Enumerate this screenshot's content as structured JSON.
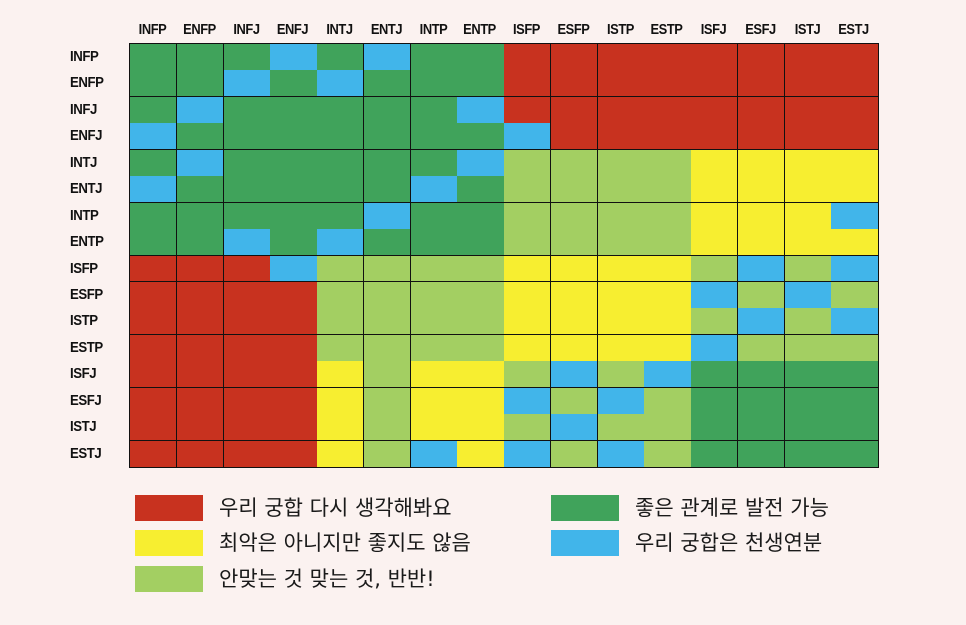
{
  "colors": {
    "red": "#c8321f",
    "yellow": "#f7ee30",
    "lightgreen": "#a3cf62",
    "green": "#40a35b",
    "blue": "#41b5ea"
  },
  "chart_data": {
    "type": "heatmap",
    "columns": [
      "INFP",
      "ENFP",
      "INFJ",
      "ENFJ",
      "INTJ",
      "ENTJ",
      "INTP",
      "ENTP",
      "ISFP",
      "ESFP",
      "ISTP",
      "ESTP",
      "ISFJ",
      "ESFJ",
      "ISTJ",
      "ESTJ"
    ],
    "rows": [
      "INFP",
      "ENFP",
      "INFJ",
      "ENFJ",
      "INTJ",
      "ENTJ",
      "INTP",
      "ENTP",
      "ISFP",
      "ESFP",
      "ISTP",
      "ESTP",
      "ISFJ",
      "ESFJ",
      "ISTJ",
      "ESTJ"
    ],
    "value_key": {
      "R": "red",
      "Y": "yellow",
      "L": "lightgreen",
      "G": "green",
      "B": "blue"
    },
    "matrix": [
      [
        "G",
        "G",
        "G",
        "B",
        "G",
        "B",
        "G",
        "G",
        "R",
        "R",
        "R",
        "R",
        "R",
        "R",
        "R",
        "R"
      ],
      [
        "G",
        "G",
        "B",
        "G",
        "B",
        "G",
        "G",
        "G",
        "R",
        "R",
        "R",
        "R",
        "R",
        "R",
        "R",
        "R"
      ],
      [
        "G",
        "B",
        "G",
        "G",
        "G",
        "G",
        "G",
        "B",
        "R",
        "R",
        "R",
        "R",
        "R",
        "R",
        "R",
        "R"
      ],
      [
        "B",
        "G",
        "G",
        "G",
        "G",
        "G",
        "G",
        "G",
        "B",
        "R",
        "R",
        "R",
        "R",
        "R",
        "R",
        "R"
      ],
      [
        "G",
        "B",
        "G",
        "G",
        "G",
        "G",
        "G",
        "B",
        "L",
        "L",
        "L",
        "L",
        "Y",
        "Y",
        "Y",
        "Y"
      ],
      [
        "B",
        "G",
        "G",
        "G",
        "G",
        "G",
        "B",
        "G",
        "L",
        "L",
        "L",
        "L",
        "Y",
        "Y",
        "Y",
        "Y"
      ],
      [
        "G",
        "G",
        "G",
        "G",
        "G",
        "B",
        "G",
        "G",
        "L",
        "L",
        "L",
        "L",
        "Y",
        "Y",
        "Y",
        "B"
      ],
      [
        "G",
        "G",
        "B",
        "G",
        "B",
        "G",
        "G",
        "G",
        "L",
        "L",
        "L",
        "L",
        "Y",
        "Y",
        "Y",
        "Y"
      ],
      [
        "R",
        "R",
        "R",
        "B",
        "L",
        "L",
        "L",
        "L",
        "Y",
        "Y",
        "Y",
        "Y",
        "L",
        "B",
        "L",
        "B"
      ],
      [
        "R",
        "R",
        "R",
        "R",
        "L",
        "L",
        "L",
        "L",
        "Y",
        "Y",
        "Y",
        "Y",
        "B",
        "L",
        "B",
        "L"
      ],
      [
        "R",
        "R",
        "R",
        "R",
        "L",
        "L",
        "L",
        "L",
        "Y",
        "Y",
        "Y",
        "Y",
        "L",
        "B",
        "L",
        "B"
      ],
      [
        "R",
        "R",
        "R",
        "R",
        "L",
        "L",
        "L",
        "L",
        "Y",
        "Y",
        "Y",
        "Y",
        "B",
        "L",
        "L",
        "L"
      ],
      [
        "R",
        "R",
        "R",
        "R",
        "Y",
        "L",
        "Y",
        "Y",
        "L",
        "B",
        "L",
        "B",
        "G",
        "G",
        "G",
        "G"
      ],
      [
        "R",
        "R",
        "R",
        "R",
        "Y",
        "L",
        "Y",
        "Y",
        "B",
        "L",
        "B",
        "L",
        "G",
        "G",
        "G",
        "G"
      ],
      [
        "R",
        "R",
        "R",
        "R",
        "Y",
        "L",
        "Y",
        "Y",
        "L",
        "B",
        "L",
        "L",
        "G",
        "G",
        "G",
        "G"
      ],
      [
        "R",
        "R",
        "R",
        "R",
        "Y",
        "L",
        "B",
        "Y",
        "B",
        "L",
        "B",
        "L",
        "G",
        "G",
        "G",
        "G"
      ]
    ],
    "legend": [
      {
        "key": "red",
        "label": "우리 궁합 다시 생각해봐요"
      },
      {
        "key": "green",
        "label": "좋은 관계로 발전 가능"
      },
      {
        "key": "yellow",
        "label": "최악은 아니지만 좋지도 않음"
      },
      {
        "key": "blue",
        "label": "우리 궁합은 천생연분"
      },
      {
        "key": "lightgreen",
        "label": "안맞는 것 맞는 것, 반반!"
      }
    ],
    "legend_placement": "bottom"
  }
}
